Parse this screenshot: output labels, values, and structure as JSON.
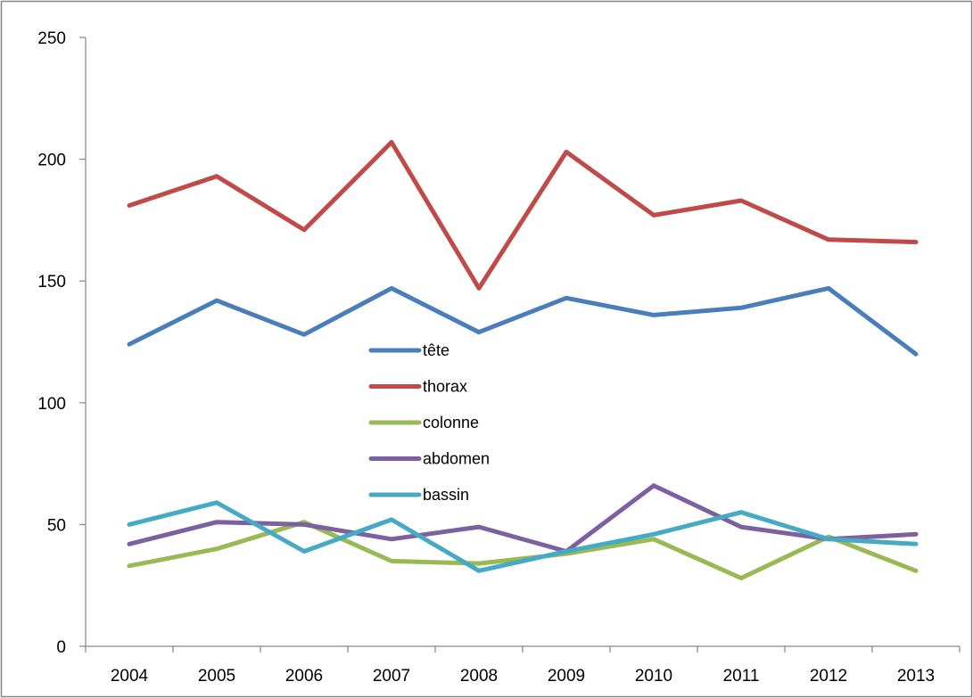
{
  "chart_data": {
    "type": "line",
    "title": "",
    "xlabel": "",
    "ylabel": "",
    "ylim": [
      0,
      250
    ],
    "yticks": [
      0,
      50,
      100,
      150,
      200,
      250
    ],
    "categories": [
      "2004",
      "2005",
      "2006",
      "2007",
      "2008",
      "2009",
      "2010",
      "2011",
      "2012",
      "2013"
    ],
    "grid": false,
    "legend_position": "inside-center",
    "series": [
      {
        "name": "tête",
        "color": "#4A7EBB",
        "values": [
          124,
          142,
          128,
          147,
          129,
          143,
          136,
          139,
          147,
          120
        ]
      },
      {
        "name": "thorax",
        "color": "#BE4B48",
        "values": [
          181,
          193,
          171,
          207,
          147,
          203,
          177,
          183,
          167,
          166
        ]
      },
      {
        "name": "colonne",
        "color": "#98B954",
        "values": [
          33,
          40,
          51,
          35,
          34,
          38,
          44,
          28,
          45,
          31
        ]
      },
      {
        "name": "abdomen",
        "color": "#7D60A0",
        "values": [
          42,
          51,
          50,
          44,
          49,
          39,
          66,
          49,
          44,
          46
        ]
      },
      {
        "name": "bassin",
        "color": "#46AAC5",
        "values": [
          50,
          59,
          39,
          52,
          31,
          39,
          46,
          55,
          44,
          42
        ]
      }
    ]
  }
}
